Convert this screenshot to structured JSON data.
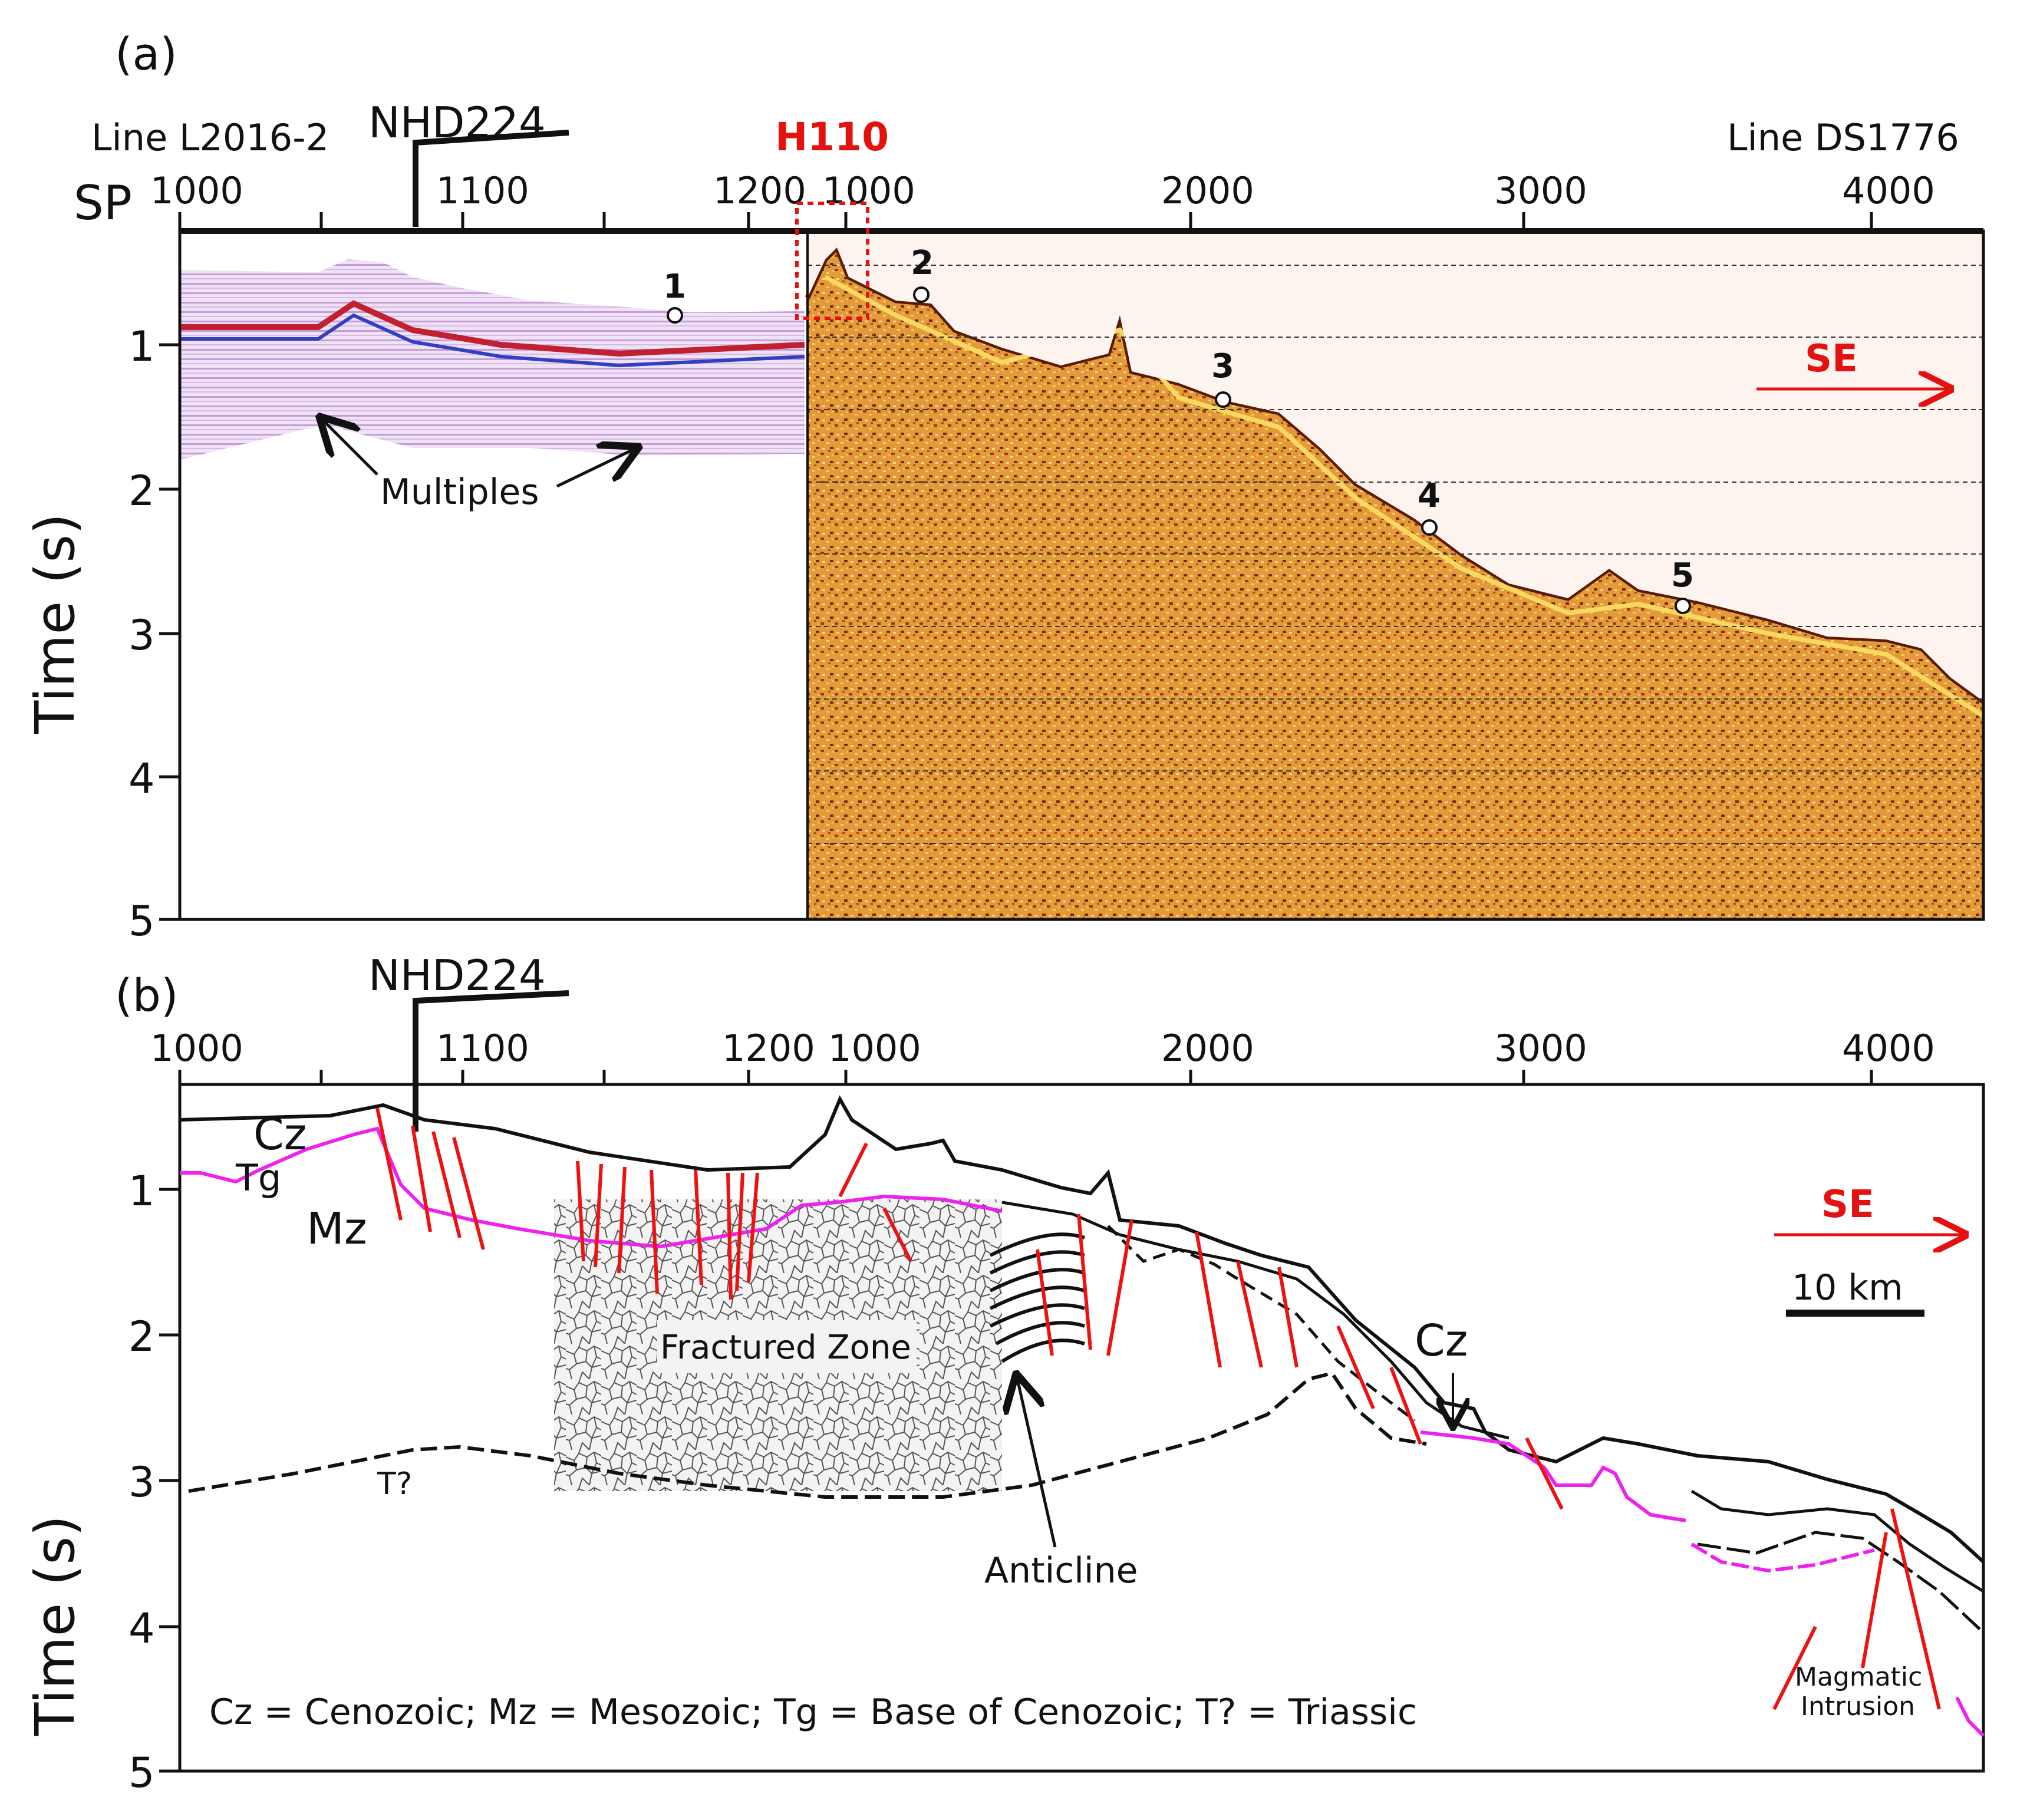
{
  "panel_a": {
    "label": "(a)",
    "left_line": "Line L2016-2",
    "right_line": "Line DS1776",
    "crossing_line": "NHD224",
    "tie_label": "H110",
    "sp_label": "SP",
    "left_ticks": [
      "1000",
      "1100",
      "1200"
    ],
    "right_ticks": [
      "1000",
      "2000",
      "3000",
      "4000"
    ],
    "y_label": "Time (s)",
    "y_ticks": [
      "1",
      "2",
      "3",
      "4",
      "5"
    ],
    "points": [
      "1",
      "2",
      "3",
      "4",
      "5"
    ],
    "multiples_label": "Multiples",
    "direction": "SE"
  },
  "panel_b": {
    "label": "(b)",
    "crossing_line": "NHD224",
    "left_ticks": [
      "1000",
      "1100",
      "1200"
    ],
    "right_ticks": [
      "1000",
      "2000",
      "3000",
      "4000"
    ],
    "y_label": "Time (s)",
    "y_ticks": [
      "1",
      "2",
      "3",
      "4",
      "5"
    ],
    "unit_cz_top": "Cz",
    "unit_tg": "Tg",
    "unit_mz": "Mz",
    "unit_cz_mid": "Cz",
    "unit_t": "T?",
    "fractured_zone": "Fractured Zone",
    "anticline": "Anticline",
    "magmatic_1": "Magmatic",
    "magmatic_2": "Intrusion",
    "direction": "SE",
    "scale": "10 km",
    "legend": "Cz = Cenozoic; Mz = Mesozoic; Tg = Base of Cenozoic; T? = Triassic"
  },
  "colors": {
    "fault": "#ee1111",
    "tg_horizon": "#ee22ee",
    "seismic_a": "#e8a23c",
    "seismic_l": "#c090d8"
  }
}
